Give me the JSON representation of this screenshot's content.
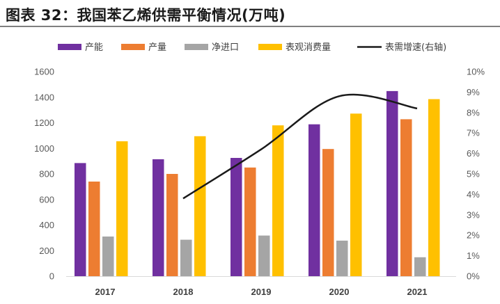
{
  "figure_title": "图表 32：我国苯乙烯供需平衡情况(万吨)",
  "colors": {
    "capacity": "#7030A0",
    "output": "#ED7D31",
    "net_import": "#A5A5A5",
    "consumption": "#FFC000",
    "growth_line": "#1a1a1a"
  },
  "chart_data": {
    "type": "bar",
    "categories": [
      "2017",
      "2018",
      "2019",
      "2020",
      "2021"
    ],
    "series": [
      {
        "name": "产能",
        "key": "capacity",
        "values": [
          885,
          915,
          925,
          1188,
          1448
        ]
      },
      {
        "name": "产量",
        "key": "output",
        "values": [
          740,
          800,
          850,
          995,
          1228
        ]
      },
      {
        "name": "净进口",
        "key": "net_import",
        "values": [
          310,
          285,
          318,
          278,
          148
        ]
      },
      {
        "name": "表观消费量",
        "key": "consumption",
        "values": [
          1055,
          1095,
          1180,
          1272,
          1385
        ]
      }
    ],
    "line_series": {
      "name": "表需增速(右轴)",
      "key": "growth_line",
      "axis": "right",
      "points": [
        {
          "x": "2018",
          "y": 3.8
        },
        {
          "x": "2019",
          "y": 6.2
        },
        {
          "x": "2020",
          "y": 8.8
        },
        {
          "x": "2021",
          "y": 8.2
        }
      ]
    },
    "y_left": {
      "min": 0,
      "max": 1600,
      "ticks": [
        "0",
        "200",
        "400",
        "600",
        "800",
        "1000",
        "1200",
        "1400",
        "1600"
      ]
    },
    "y_right": {
      "min": 0,
      "max": 10,
      "ticks": [
        "0%",
        "1%",
        "2%",
        "3%",
        "4%",
        "5%",
        "6%",
        "7%",
        "8%",
        "9%",
        "10%"
      ]
    },
    "legend_position": "top",
    "grid": false
  }
}
